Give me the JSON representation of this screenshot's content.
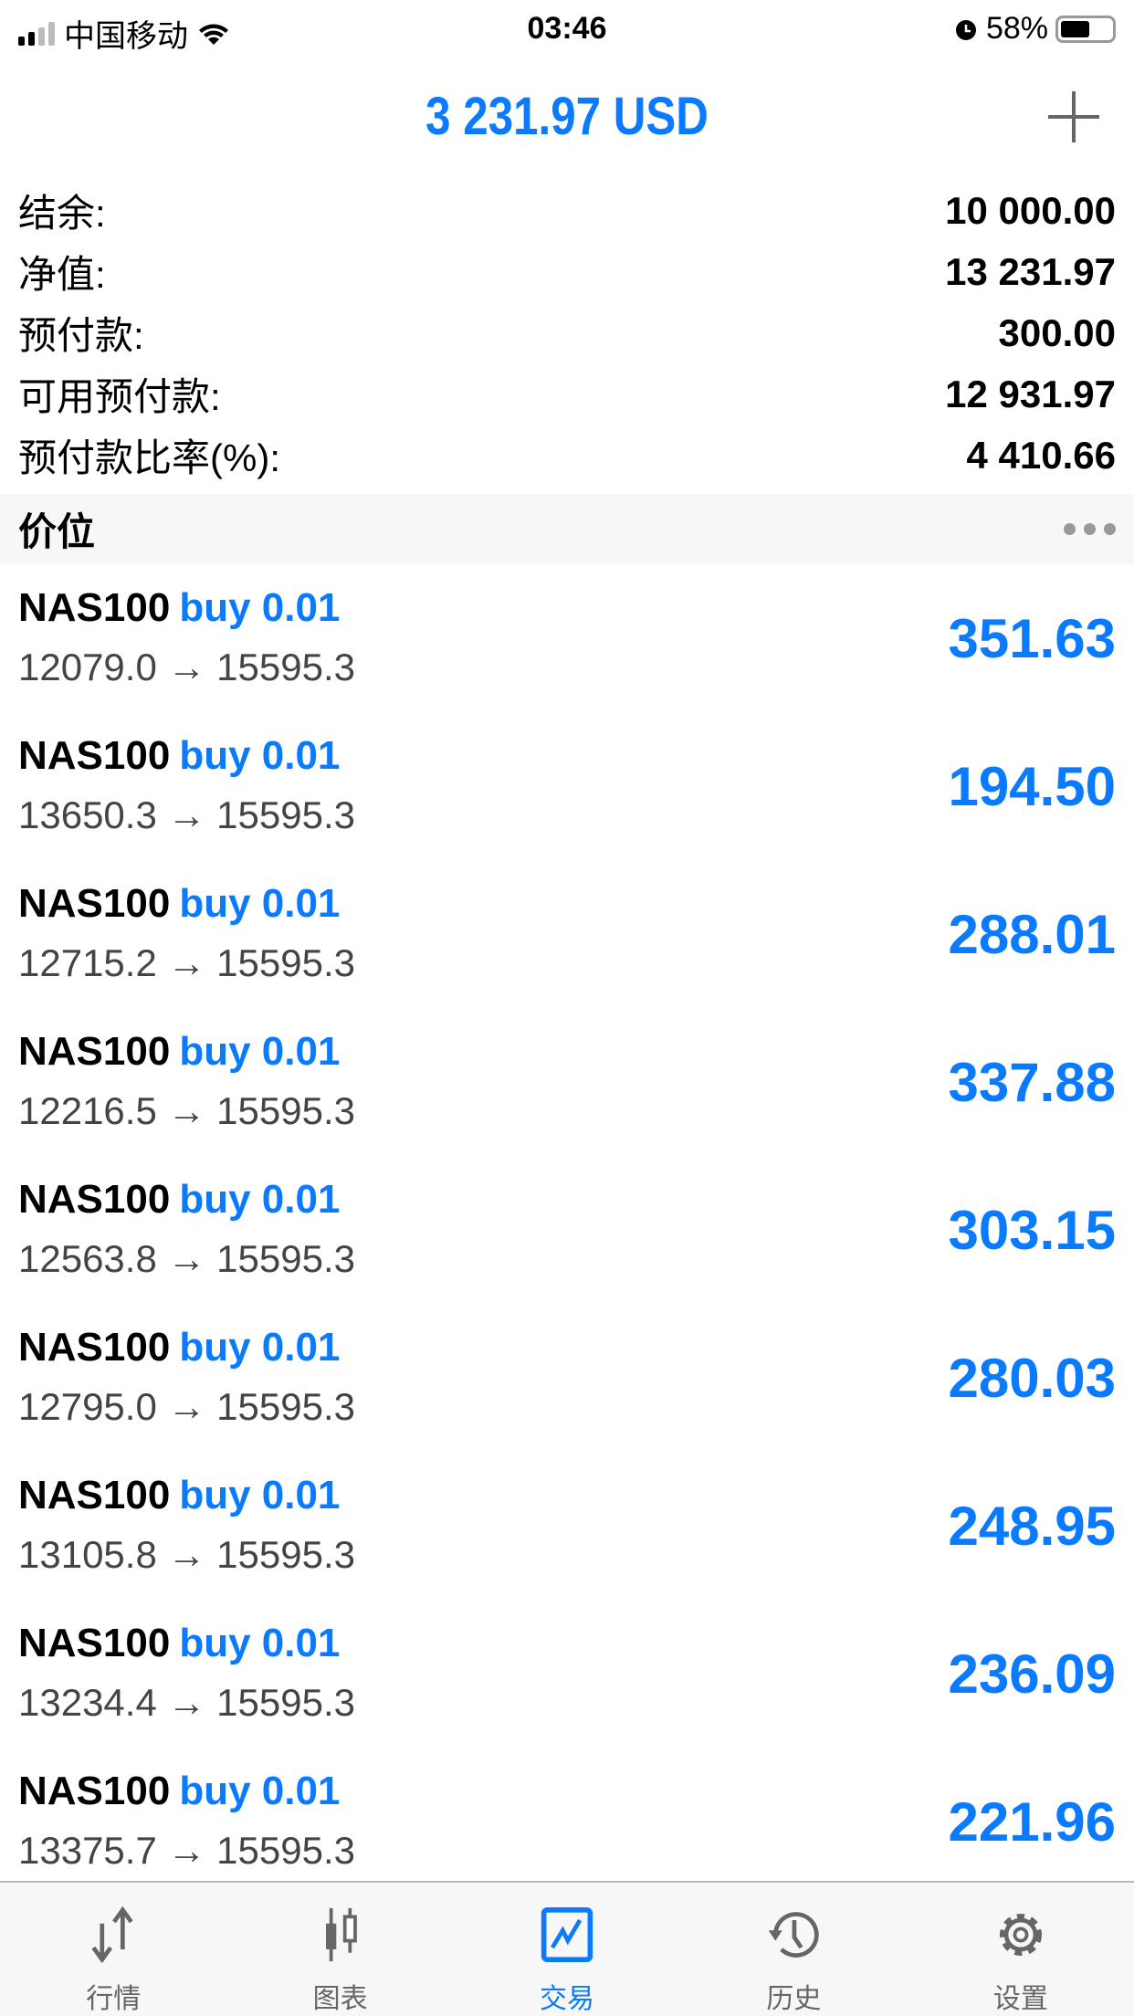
{
  "status_bar": {
    "carrier": "中国移动",
    "time": "03:46",
    "battery": "58%",
    "battery_level": 58
  },
  "header": {
    "title": "3 231.97 USD",
    "add_icon": "plus-icon"
  },
  "summary": [
    {
      "label": "结余:",
      "value": "10 000.00"
    },
    {
      "label": "净值:",
      "value": "13 231.97"
    },
    {
      "label": "预付款:",
      "value": "300.00"
    },
    {
      "label": "可用预付款:",
      "value": "12 931.97"
    },
    {
      "label": "预付款比率(%):",
      "value": "4 410.66"
    }
  ],
  "section": {
    "title": "价位",
    "more_icon": "more-dots-icon"
  },
  "positions": [
    {
      "symbol": "NAS100",
      "side": "buy 0.01",
      "prices": "12079.0 → 15595.3",
      "profit": "351.63"
    },
    {
      "symbol": "NAS100",
      "side": "buy 0.01",
      "prices": "13650.3 → 15595.3",
      "profit": "194.50"
    },
    {
      "symbol": "NAS100",
      "side": "buy 0.01",
      "prices": "12715.2 → 15595.3",
      "profit": "288.01"
    },
    {
      "symbol": "NAS100",
      "side": "buy 0.01",
      "prices": "12216.5 → 15595.3",
      "profit": "337.88"
    },
    {
      "symbol": "NAS100",
      "side": "buy 0.01",
      "prices": "12563.8 → 15595.3",
      "profit": "303.15"
    },
    {
      "symbol": "NAS100",
      "side": "buy 0.01",
      "prices": "12795.0 → 15595.3",
      "profit": "280.03"
    },
    {
      "symbol": "NAS100",
      "side": "buy 0.01",
      "prices": "13105.8 → 15595.3",
      "profit": "248.95"
    },
    {
      "symbol": "NAS100",
      "side": "buy 0.01",
      "prices": "13234.4 → 15595.3",
      "profit": "236.09"
    },
    {
      "symbol": "NAS100",
      "side": "buy 0.01",
      "prices": "13375.7 → 15595.3",
      "profit": "221.96"
    }
  ],
  "tabs": [
    {
      "label": "行情",
      "icon": "quotes-arrows-icon"
    },
    {
      "label": "图表",
      "icon": "candlestick-chart-icon"
    },
    {
      "label": "交易",
      "icon": "trade-chart-icon",
      "active": true
    },
    {
      "label": "历史",
      "icon": "history-clock-icon"
    },
    {
      "label": "设置",
      "icon": "gear-icon"
    }
  ],
  "colors": {
    "accent": "#0a7aff",
    "inactive": "#666666"
  }
}
